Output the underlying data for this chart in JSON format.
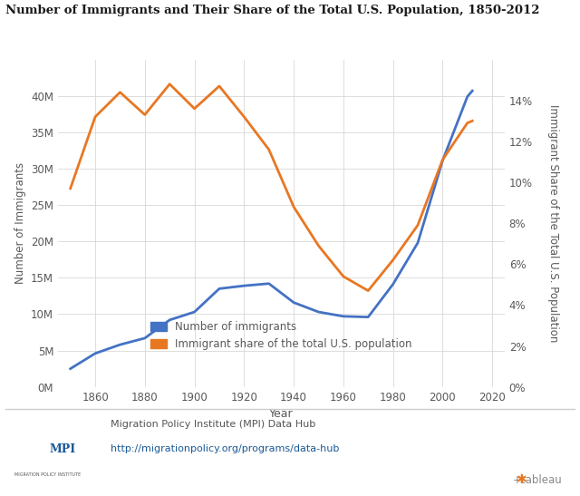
{
  "title": "Number of Immigrants and Their Share of the Total U.S. Population, 1850-2012",
  "xlabel": "Year",
  "ylabel_left": "Number of Immigrants",
  "ylabel_right": "Immigrant Share of the Total U.S. Population",
  "years": [
    1850,
    1860,
    1870,
    1880,
    1890,
    1900,
    1910,
    1920,
    1930,
    1940,
    1950,
    1960,
    1970,
    1980,
    1990,
    2000,
    2010,
    2012
  ],
  "immigrants": [
    2500000,
    4600000,
    5800000,
    6700000,
    9200000,
    10300000,
    13500000,
    13900000,
    14200000,
    11600000,
    10300000,
    9700000,
    9600000,
    14100000,
    19800000,
    31100000,
    39900000,
    40700000
  ],
  "share": [
    9.7,
    13.2,
    14.4,
    13.3,
    14.8,
    13.6,
    14.7,
    13.2,
    11.6,
    8.8,
    6.9,
    5.4,
    4.7,
    6.2,
    7.9,
    11.1,
    12.9,
    13.0
  ],
  "line_color_immigrants": "#4472C4",
  "line_color_share": "#E87722",
  "background_color": "#ffffff",
  "grid_color": "#d8d8d8",
  "tick_label_color": "#595959",
  "title_color": "#1a1a1a",
  "axis_label_color": "#595959",
  "legend_label_immigrants": "Number of immigrants",
  "legend_label_share": "Immigrant share of the total U.S. population",
  "ylim_left": [
    0,
    45000000
  ],
  "ylim_right": [
    0,
    16
  ],
  "yticks_left": [
    0,
    5000000,
    10000000,
    15000000,
    20000000,
    25000000,
    30000000,
    35000000,
    40000000
  ],
  "ytick_labels_left": [
    "0M",
    "5M",
    "10M",
    "15M",
    "20M",
    "25M",
    "30M",
    "35M",
    "40M"
  ],
  "yticks_right": [
    0,
    2,
    4,
    6,
    8,
    10,
    12,
    14
  ],
  "ytick_labels_right": [
    "0%",
    "2%",
    "4%",
    "6%",
    "8%",
    "10%",
    "12%",
    "14%"
  ],
  "xticks": [
    1860,
    1880,
    1900,
    1920,
    1940,
    1960,
    1980,
    2000,
    2020
  ],
  "xlim": [
    1845,
    2025
  ],
  "footer_line_color": "#cccccc",
  "footer_source_text": "Migration Policy Institute (MPI) Data Hub",
  "footer_url_text": "http://migrationpolicy.org/programs/data-hub",
  "footer_text_color": "#555555",
  "footer_url_color": "#1a5a96",
  "mpi_text_color": "#1a5a96",
  "tableau_text": "+tableau"
}
